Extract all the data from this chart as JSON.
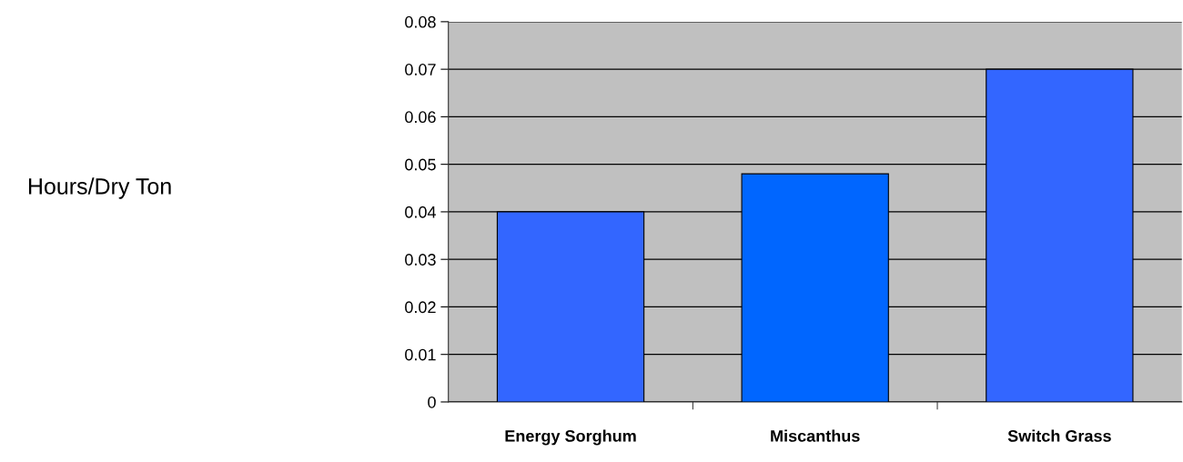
{
  "chart_data": {
    "type": "bar",
    "annotations": [
      "Hours/Dry Ton"
    ],
    "categories": [
      "Energy Sorghum",
      "Miscanthus",
      "Switch Grass"
    ],
    "values": [
      0.04,
      0.048,
      0.07
    ],
    "colors": [
      "#3366ff",
      "#0066ff",
      "#3366ff"
    ],
    "ylim": [
      0,
      0.08
    ],
    "yticks": [
      {
        "value": 0,
        "label": "0"
      },
      0.01,
      0.02,
      0.03,
      0.04,
      0.05,
      0.06,
      0.07,
      0.08
    ],
    "grid": "y"
  }
}
